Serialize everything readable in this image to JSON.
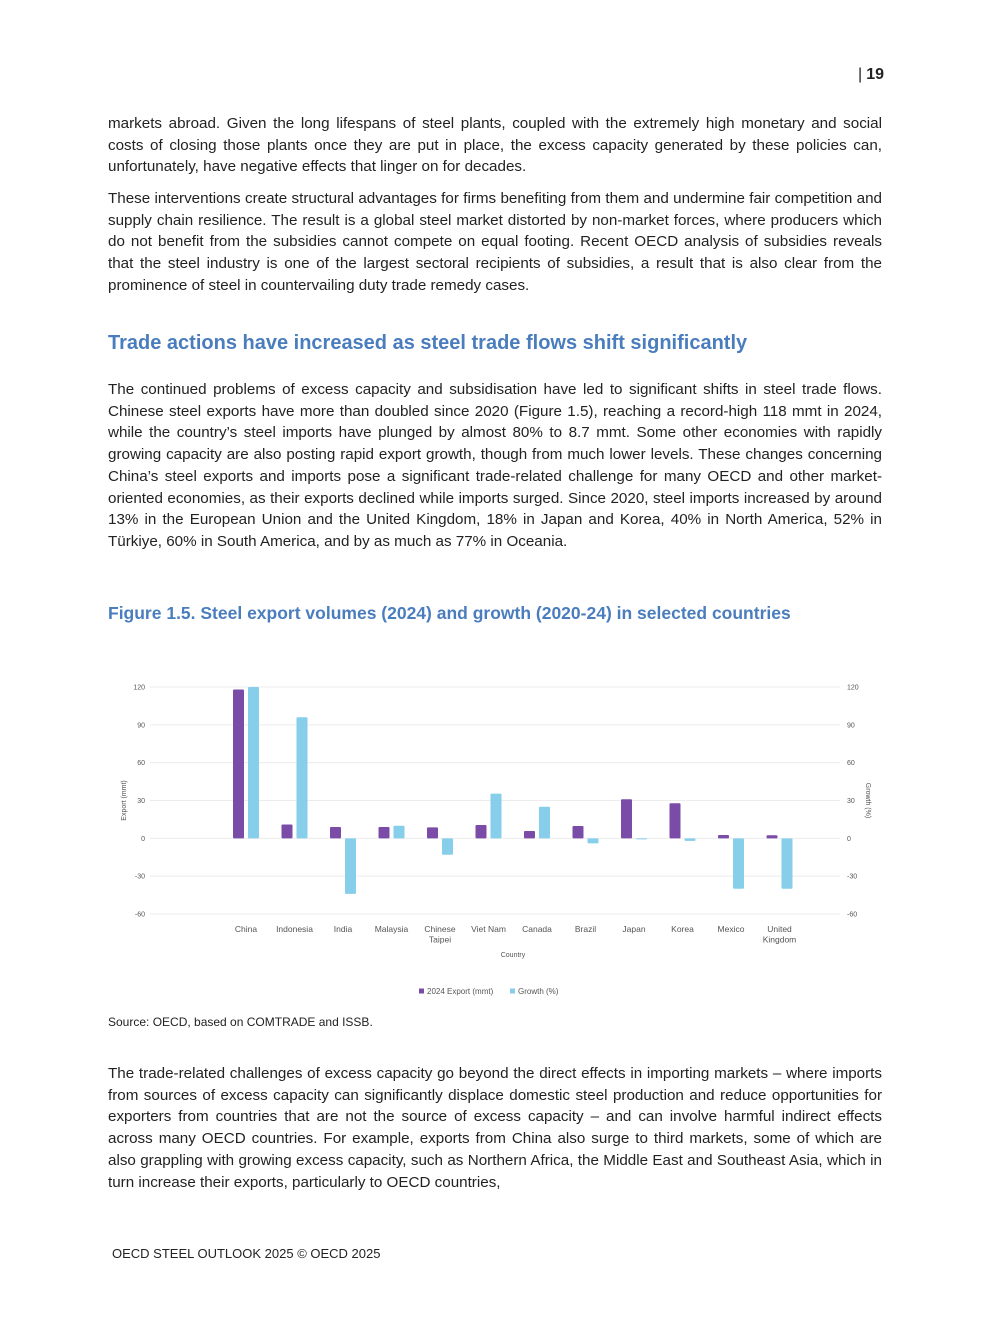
{
  "page_number": "19",
  "paragraphs": [
    "markets abroad. Given the long lifespans of steel plants, coupled with the extremely high monetary and social costs of closing those plants once they are put in place, the excess capacity generated by these policies can, unfortunately, have negative effects that linger on for decades.",
    "These interventions create structural advantages for firms benefiting from them and undermine fair competition and supply chain resilience. The result is a global steel market distorted by non-market forces, where producers which do not benefit from the subsidies cannot compete on equal footing. Recent OECD analysis of subsidies reveals that the steel industry is one of the largest sectoral recipients of subsidies, a result that is also clear from the prominence of steel in countervailing duty trade remedy cases.",
    "The continued problems of excess capacity and subsidisation have led to significant shifts in steel trade flows. Chinese steel exports have more than doubled since 2020 (Figure 1.5), reaching a record-high 118 mmt in 2024, while the country’s steel imports have plunged by almost 80% to 8.7 mmt. Some other economies with rapidly growing capacity are also posting rapid export growth, though from much lower levels. These changes concerning China’s steel exports and imports pose a significant trade-related challenge for many OECD and other market-oriented economies, as their exports declined while imports surged. Since 2020, steel imports increased by around 13% in the European Union and the United Kingdom, 18% in Japan and Korea, 40% in North America, 52% in Türkiye, 60% in South America, and by as much as 77% in Oceania.",
    "The trade-related challenges of excess capacity go beyond the direct effects in importing markets – where imports from sources of excess capacity can significantly displace domestic steel production and reduce opportunities for exporters from countries that are not the source of excess capacity – and can involve harmful indirect effects across many OECD countries. For example, exports from China also surge to third markets, some of which are also grappling with growing excess capacity, such as Northern Africa, the Middle East and Southeast Asia, which in turn increase their exports, particularly to OECD countries,"
  ],
  "section_heading": "Trade actions have increased as steel trade flows shift significantly",
  "figure_title": "Figure 1.5. Steel export volumes (2024) and growth (2020-24) in selected countries",
  "source": "Source: OECD, based on COMTRADE and ISSB.",
  "footer": "OECD STEEL OUTLOOK 2025 © OECD 2025",
  "chart_data": {
    "type": "bar",
    "categories": [
      "China",
      "Indonesia",
      "India",
      "Malaysia",
      "Chinese Taipei",
      "Viet Nam",
      "Canada",
      "Brazil",
      "Japan",
      "Korea",
      "Mexico",
      "United Kingdom"
    ],
    "series": [
      {
        "name": "2024 Export (mmt)",
        "color": "#7a4ca8",
        "axis": "left",
        "values": [
          118,
          11,
          9,
          9,
          8.7,
          10.6,
          5.8,
          9.8,
          31,
          27.8,
          2.6,
          2.4
        ]
      },
      {
        "name": "Growth (%)",
        "color": "#87ceeb",
        "axis": "right",
        "values": [
          120,
          96,
          -44,
          10,
          -13,
          35.5,
          25,
          -4,
          0,
          -2,
          -40,
          -40
        ]
      }
    ],
    "xlabel": "Country",
    "ylabel": "Export (mmt)",
    "y2label": "Growth (%)",
    "ylim": [
      -60,
      120
    ],
    "yticks": [
      120,
      90,
      60,
      30,
      0,
      -30,
      -60
    ],
    "grid": true,
    "legend": "bottom"
  }
}
